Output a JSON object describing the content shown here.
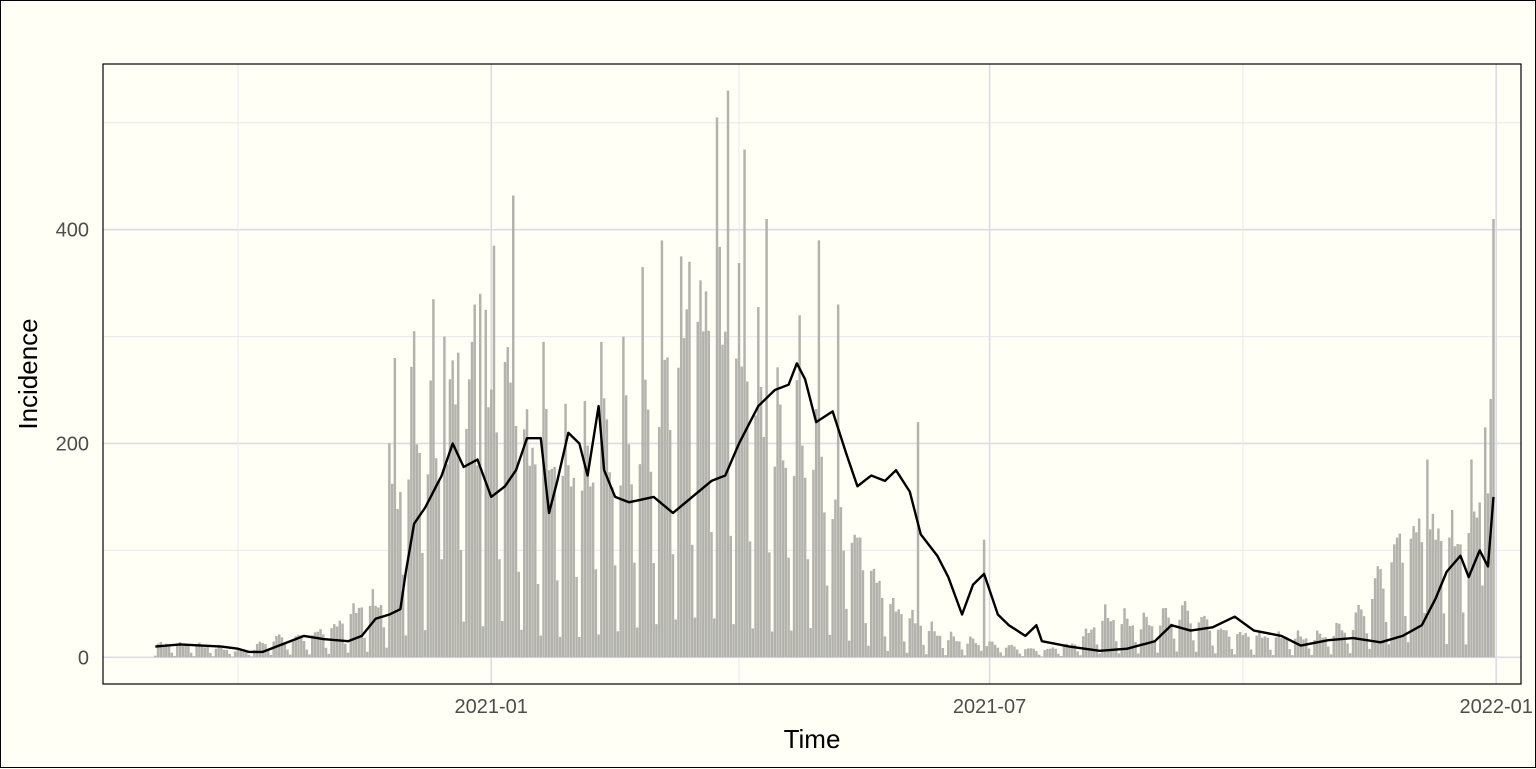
{
  "chart_data": {
    "type": "bar",
    "title": "",
    "xlabel": "Time",
    "ylabel": "Incidence",
    "x_start": "2020-09-01",
    "x_end": "2021-12-31",
    "xlim": [
      "2020-08-13",
      "2022-01-10"
    ],
    "ylim": [
      -25,
      555
    ],
    "x_ticks": [
      {
        "date": "2021-01-01",
        "label": "2021-01"
      },
      {
        "date": "2021-07-01",
        "label": "2021-07"
      },
      {
        "date": "2022-01-01",
        "label": "2022-01"
      }
    ],
    "y_ticks": [
      0,
      200,
      400
    ],
    "grid": true,
    "legend": "none",
    "bar_color": "#b3b3ad",
    "line_color": "#000000",
    "series": [
      {
        "type": "bar",
        "description": "daily incidence",
        "anchors": [
          [
            "2020-09-01",
            10
          ],
          [
            "2020-09-20",
            8
          ],
          [
            "2020-10-05",
            4
          ],
          [
            "2020-10-12",
            14
          ],
          [
            "2020-10-25",
            15
          ],
          [
            "2020-11-05",
            22
          ],
          [
            "2020-11-15",
            38
          ],
          [
            "2020-11-22",
            40
          ],
          [
            "2020-11-28",
            125
          ],
          [
            "2020-12-05",
            180
          ],
          [
            "2020-12-12",
            160
          ],
          [
            "2020-12-22",
            200
          ],
          [
            "2020-12-30",
            170
          ],
          [
            "2021-01-06",
            220
          ],
          [
            "2021-01-15",
            150
          ],
          [
            "2021-02-01",
            140
          ],
          [
            "2021-02-15",
            155
          ],
          [
            "2021-03-01",
            180
          ],
          [
            "2021-03-12",
            230
          ],
          [
            "2021-03-22",
            260
          ],
          [
            "2021-04-01",
            225
          ],
          [
            "2021-04-15",
            165
          ],
          [
            "2021-04-28",
            170
          ],
          [
            "2021-05-06",
            110
          ],
          [
            "2021-05-15",
            80
          ],
          [
            "2021-05-25",
            40
          ],
          [
            "2021-06-05",
            25
          ],
          [
            "2021-06-15",
            15
          ],
          [
            "2021-07-01",
            10
          ],
          [
            "2021-07-20",
            5
          ],
          [
            "2021-08-01",
            10
          ],
          [
            "2021-08-12",
            30
          ],
          [
            "2021-08-25",
            25
          ],
          [
            "2021-09-10",
            35
          ],
          [
            "2021-09-25",
            18
          ],
          [
            "2021-10-10",
            15
          ],
          [
            "2021-10-28",
            15
          ],
          [
            "2021-11-10",
            25
          ],
          [
            "2021-11-25",
            80
          ],
          [
            "2021-12-05",
            95
          ],
          [
            "2021-12-20",
            85
          ],
          [
            "2021-12-31",
            150
          ]
        ],
        "spikes": [
          [
            "2020-11-25",
            200
          ],
          [
            "2020-11-27",
            280
          ],
          [
            "2020-12-04",
            305
          ],
          [
            "2020-12-11",
            335
          ],
          [
            "2020-12-15",
            300
          ],
          [
            "2020-12-20",
            285
          ],
          [
            "2020-12-25",
            295
          ],
          [
            "2020-12-26",
            330
          ],
          [
            "2020-12-28",
            340
          ],
          [
            "2020-12-30",
            325
          ],
          [
            "2021-01-02",
            385
          ],
          [
            "2021-01-09",
            432
          ],
          [
            "2021-01-20",
            295
          ],
          [
            "2021-02-10",
            295
          ],
          [
            "2021-02-18",
            300
          ],
          [
            "2021-02-25",
            365
          ],
          [
            "2021-03-04",
            390
          ],
          [
            "2021-03-11",
            375
          ],
          [
            "2021-03-14",
            370
          ],
          [
            "2021-03-24",
            505
          ],
          [
            "2021-03-28",
            530
          ],
          [
            "2021-04-03",
            475
          ],
          [
            "2021-04-11",
            410
          ],
          [
            "2021-04-23",
            320
          ],
          [
            "2021-04-30",
            390
          ],
          [
            "2021-05-07",
            330
          ],
          [
            "2021-06-05",
            220
          ],
          [
            "2021-06-29",
            110
          ],
          [
            "2021-12-07",
            185
          ],
          [
            "2021-12-23",
            185
          ],
          [
            "2021-12-28",
            215
          ],
          [
            "2021-12-31",
            410
          ]
        ]
      },
      {
        "type": "line",
        "description": "7-day rolling average",
        "points": [
          [
            "2020-09-01",
            10
          ],
          [
            "2020-09-10",
            12
          ],
          [
            "2020-09-25",
            10
          ],
          [
            "2020-10-01",
            8
          ],
          [
            "2020-10-05",
            5
          ],
          [
            "2020-10-10",
            5
          ],
          [
            "2020-10-20",
            15
          ],
          [
            "2020-10-25",
            20
          ],
          [
            "2020-11-01",
            17
          ],
          [
            "2020-11-10",
            15
          ],
          [
            "2020-11-15",
            20
          ],
          [
            "2020-11-20",
            36
          ],
          [
            "2020-11-25",
            40
          ],
          [
            "2020-11-29",
            45
          ],
          [
            "2020-12-01",
            80
          ],
          [
            "2020-12-04",
            125
          ],
          [
            "2020-12-08",
            140
          ],
          [
            "2020-12-10",
            150
          ],
          [
            "2020-12-14",
            170
          ],
          [
            "2020-12-18",
            200
          ],
          [
            "2020-12-22",
            178
          ],
          [
            "2020-12-27",
            185
          ],
          [
            "2021-01-01",
            150
          ],
          [
            "2021-01-06",
            160
          ],
          [
            "2021-01-10",
            175
          ],
          [
            "2021-01-14",
            205
          ],
          [
            "2021-01-19",
            205
          ],
          [
            "2021-01-22",
            135
          ],
          [
            "2021-01-25",
            165
          ],
          [
            "2021-01-29",
            210
          ],
          [
            "2021-02-02",
            200
          ],
          [
            "2021-02-05",
            170
          ],
          [
            "2021-02-09",
            235
          ],
          [
            "2021-02-11",
            175
          ],
          [
            "2021-02-15",
            150
          ],
          [
            "2021-02-20",
            145
          ],
          [
            "2021-03-01",
            150
          ],
          [
            "2021-03-08",
            135
          ],
          [
            "2021-03-15",
            150
          ],
          [
            "2021-03-22",
            165
          ],
          [
            "2021-03-27",
            170
          ],
          [
            "2021-04-01",
            200
          ],
          [
            "2021-04-08",
            235
          ],
          [
            "2021-04-14",
            250
          ],
          [
            "2021-04-19",
            255
          ],
          [
            "2021-04-22",
            275
          ],
          [
            "2021-04-25",
            260
          ],
          [
            "2021-04-29",
            220
          ],
          [
            "2021-05-05",
            230
          ],
          [
            "2021-05-10",
            190
          ],
          [
            "2021-05-14",
            160
          ],
          [
            "2021-05-19",
            170
          ],
          [
            "2021-05-24",
            165
          ],
          [
            "2021-05-28",
            175
          ],
          [
            "2021-06-02",
            155
          ],
          [
            "2021-06-06",
            115
          ],
          [
            "2021-06-12",
            95
          ],
          [
            "2021-06-16",
            75
          ],
          [
            "2021-06-21",
            40
          ],
          [
            "2021-06-25",
            68
          ],
          [
            "2021-06-29",
            78
          ],
          [
            "2021-07-04",
            40
          ],
          [
            "2021-07-08",
            30
          ],
          [
            "2021-07-14",
            20
          ],
          [
            "2021-07-18",
            30
          ],
          [
            "2021-07-20",
            15
          ],
          [
            "2021-07-30",
            10
          ],
          [
            "2021-08-10",
            6
          ],
          [
            "2021-08-20",
            8
          ],
          [
            "2021-08-30",
            15
          ],
          [
            "2021-09-05",
            30
          ],
          [
            "2021-09-12",
            25
          ],
          [
            "2021-09-20",
            28
          ],
          [
            "2021-09-28",
            38
          ],
          [
            "2021-10-05",
            25
          ],
          [
            "2021-10-15",
            20
          ],
          [
            "2021-10-22",
            11
          ],
          [
            "2021-11-01",
            16
          ],
          [
            "2021-11-10",
            18
          ],
          [
            "2021-11-20",
            14
          ],
          [
            "2021-11-28",
            20
          ],
          [
            "2021-12-05",
            30
          ],
          [
            "2021-12-10",
            55
          ],
          [
            "2021-12-14",
            80
          ],
          [
            "2021-12-19",
            95
          ],
          [
            "2021-12-22",
            75
          ],
          [
            "2021-12-26",
            100
          ],
          [
            "2021-12-29",
            85
          ],
          [
            "2021-12-31",
            150
          ]
        ]
      }
    ]
  }
}
